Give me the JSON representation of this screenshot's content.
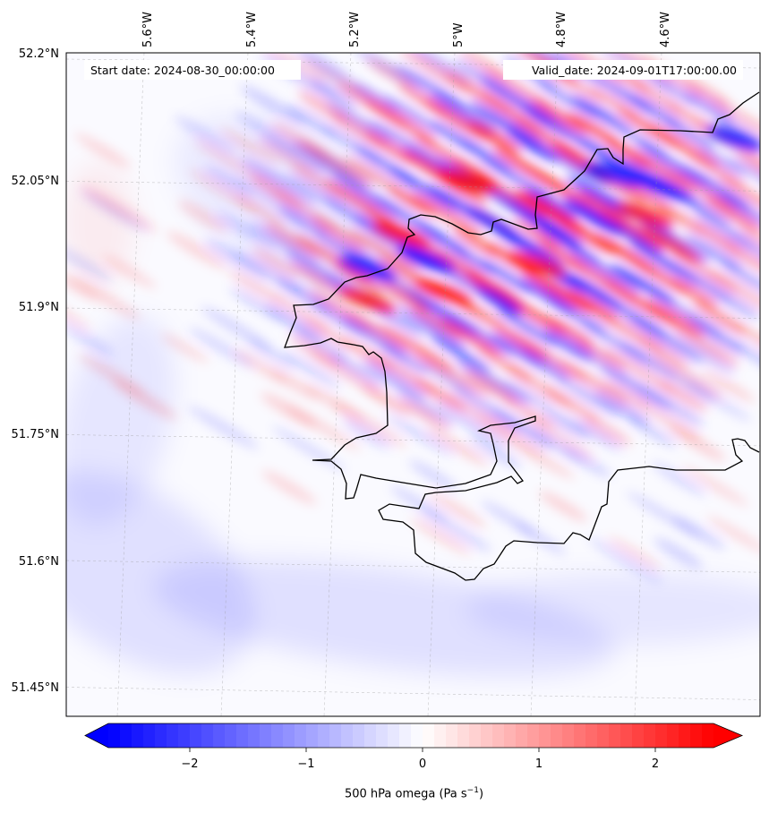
{
  "header": {
    "start_date": "Start date: 2024-08-30_00:00:00",
    "valid_date": "Valid_date: 2024-09-01T17:00:00.00"
  },
  "map": {
    "lat_labels": [
      "52.2°N",
      "52.05°N",
      "51.9°N",
      "51.75°N",
      "51.6°N",
      "51.45°N"
    ],
    "lon_labels": [
      "5.6°W",
      "5.4°W",
      "5.2°W",
      "5°W",
      "4.8°W",
      "4.6°W"
    ],
    "field_colors": {
      "negative": "#0000ff",
      "neutral": "#ffffff",
      "positive": "#ff0000"
    }
  },
  "colorbar": {
    "ticks": [
      "−2",
      "−1",
      "0",
      "1",
      "2"
    ],
    "tick_values": [
      -2,
      -1,
      0,
      1,
      2
    ],
    "range": [
      -2.7,
      2.5
    ],
    "label_main": "500 hPa omega (Pa s",
    "label_sup": "−1",
    "label_close": ")"
  }
}
